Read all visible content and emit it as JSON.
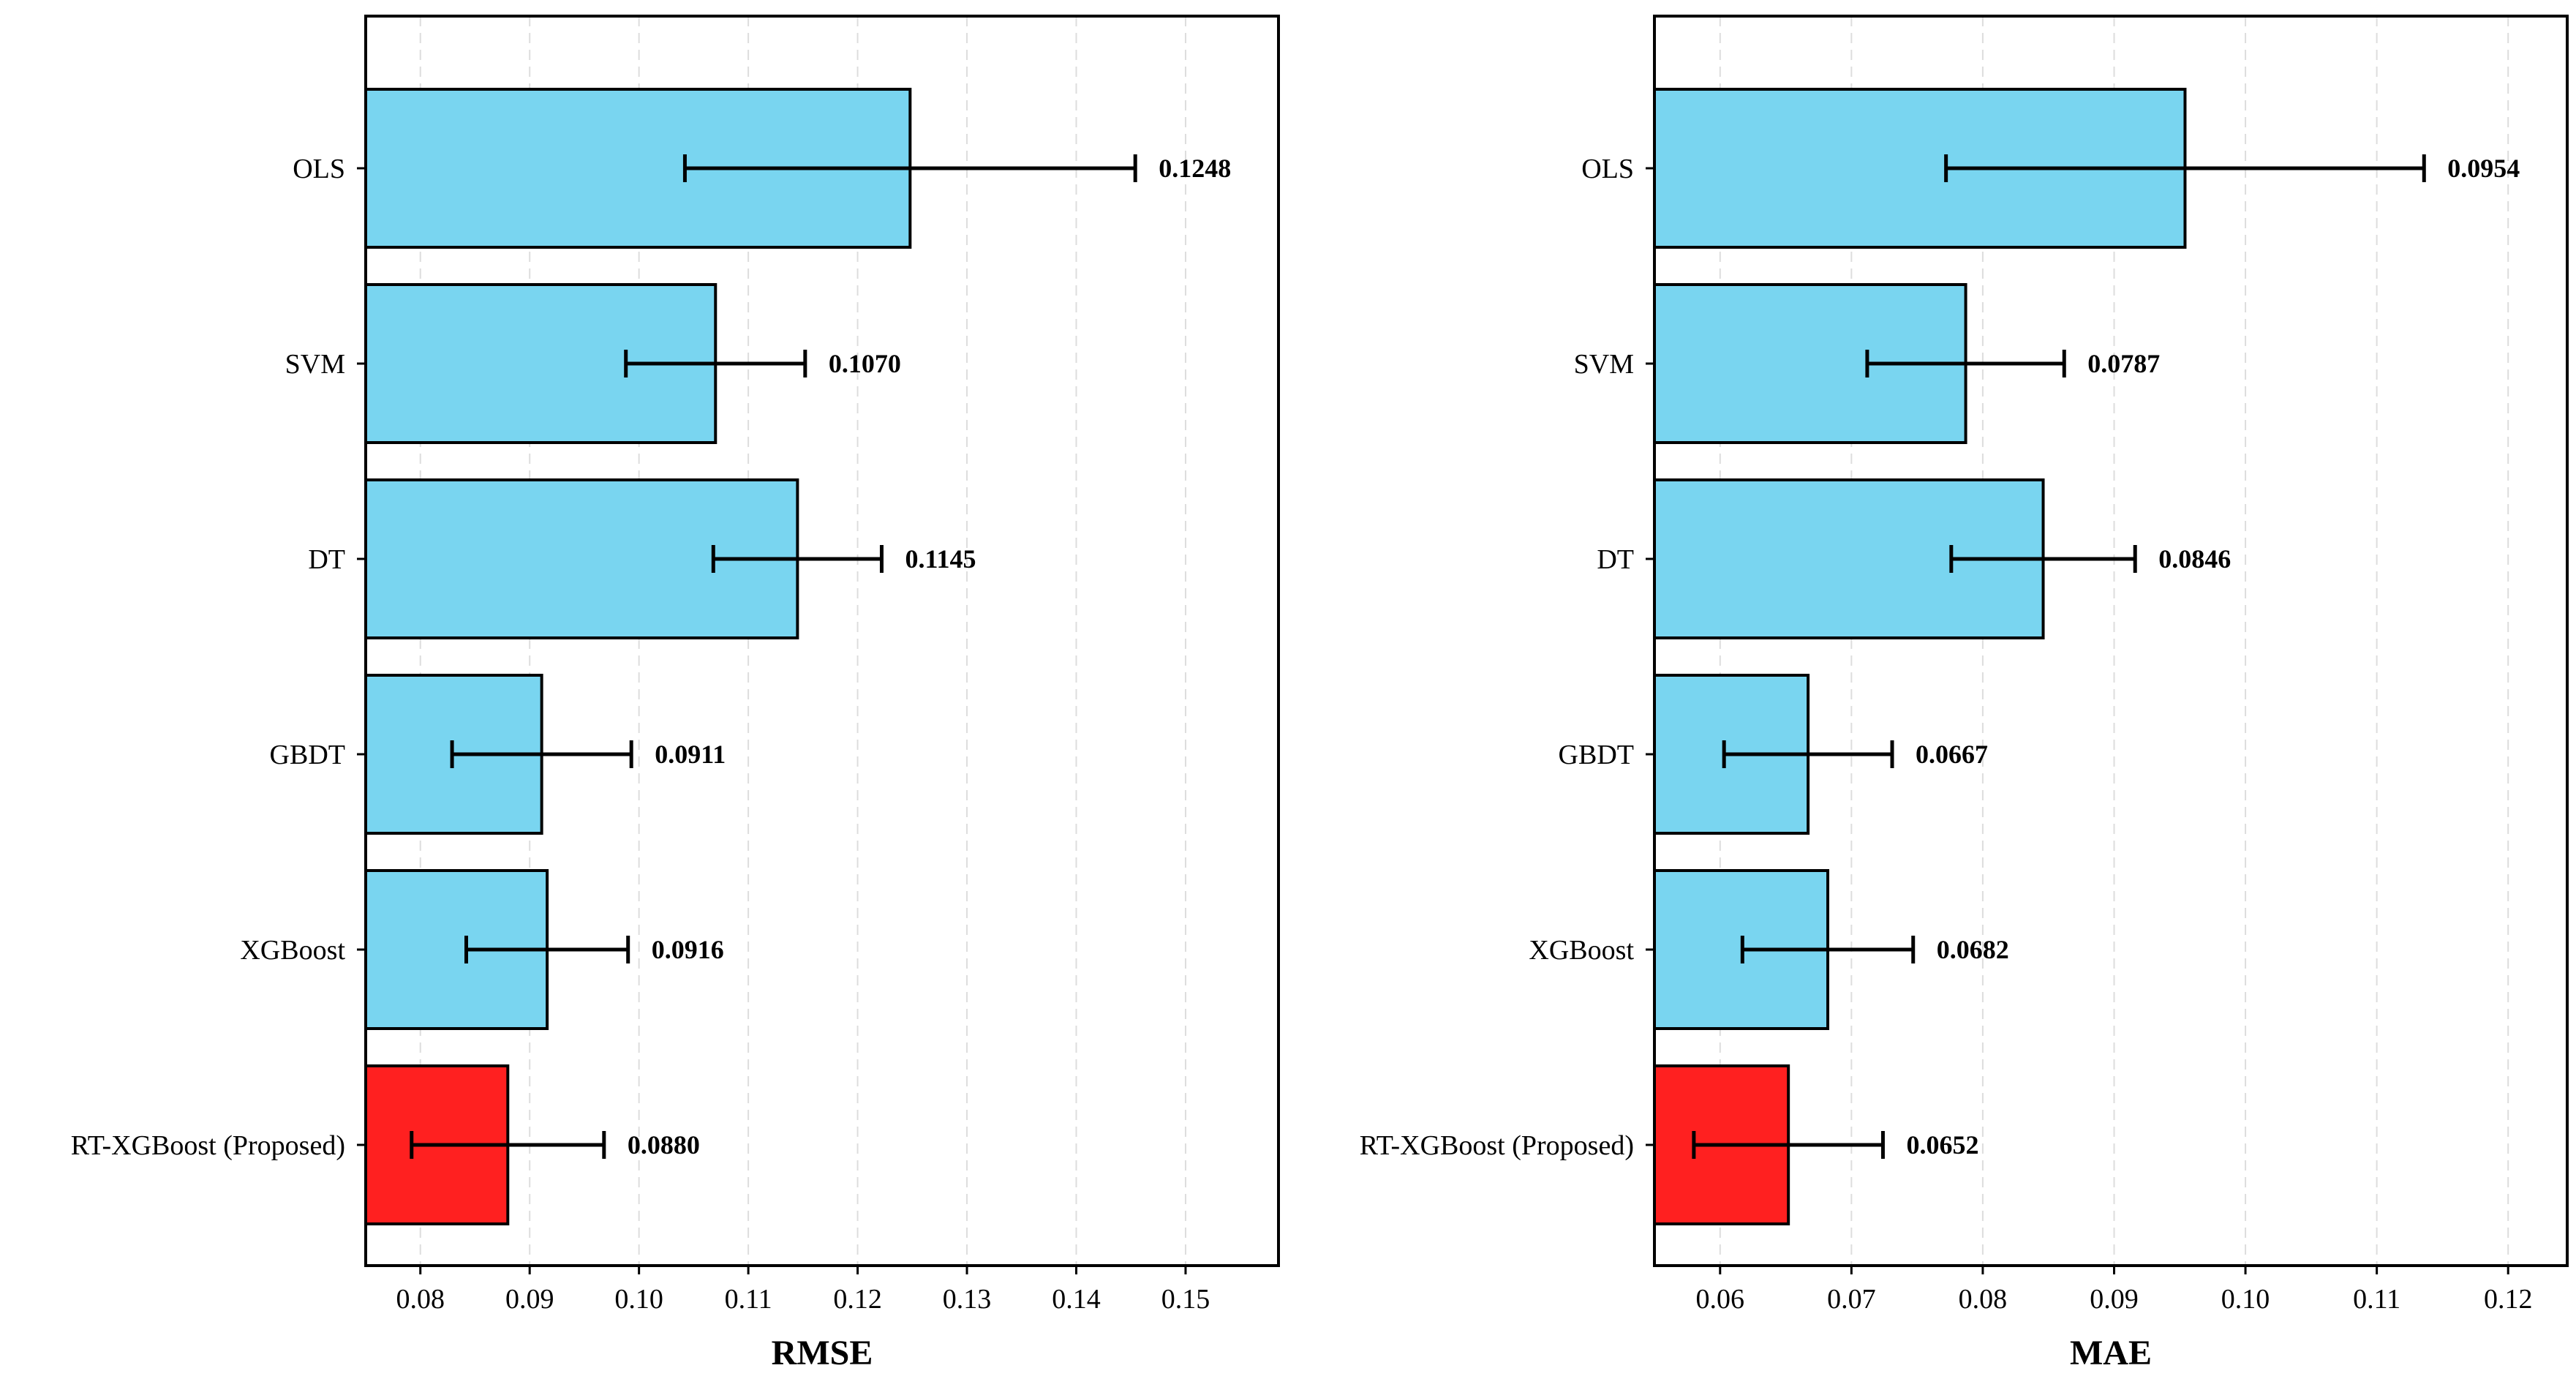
{
  "chart_data": [
    {
      "type": "bar",
      "orientation": "horizontal",
      "categories": [
        "OLS",
        "SVM",
        "DT",
        "GBDT",
        "XGBoost",
        "RT-XGBoost (Proposed)"
      ],
      "values": [
        0.1248,
        0.107,
        0.1145,
        0.0911,
        0.0916,
        0.088
      ],
      "value_labels": [
        "0.1248",
        "0.1070",
        "0.1145",
        "0.0911",
        "0.0916",
        "0.0880"
      ],
      "errors": [
        0.0206,
        0.0082,
        0.0077,
        0.0082,
        0.0074,
        0.0088
      ],
      "xlabel": "RMSE",
      "xlim": [
        0.075,
        0.1585
      ],
      "xticks": [
        0.08,
        0.09,
        0.1,
        0.11,
        0.12,
        0.13,
        0.14,
        0.15
      ],
      "xtick_labels": [
        "0.08",
        "0.09",
        "0.10",
        "0.11",
        "0.12",
        "0.13",
        "0.14",
        "0.15"
      ],
      "bar_colors": [
        "#79d5f0",
        "#79d5f0",
        "#79d5f0",
        "#79d5f0",
        "#79d5f0",
        "#ff2020"
      ],
      "grid": "vertical dashed"
    },
    {
      "type": "bar",
      "orientation": "horizontal",
      "categories": [
        "OLS",
        "SVM",
        "DT",
        "GBDT",
        "XGBoost",
        "RT-XGBoost (Proposed)"
      ],
      "values": [
        0.0954,
        0.0787,
        0.0846,
        0.0667,
        0.0682,
        0.0652
      ],
      "value_labels": [
        "0.0954",
        "0.0787",
        "0.0846",
        "0.0667",
        "0.0682",
        "0.0652"
      ],
      "errors": [
        0.0182,
        0.0075,
        0.007,
        0.0064,
        0.0065,
        0.0072
      ],
      "xlabel": "MAE",
      "xlim": [
        0.055,
        0.1245
      ],
      "xticks": [
        0.06,
        0.07,
        0.08,
        0.09,
        0.1,
        0.11,
        0.12
      ],
      "xtick_labels": [
        "0.06",
        "0.07",
        "0.08",
        "0.09",
        "0.10",
        "0.11",
        "0.12"
      ],
      "bar_colors": [
        "#79d5f0",
        "#79d5f0",
        "#79d5f0",
        "#79d5f0",
        "#79d5f0",
        "#ff2020"
      ],
      "grid": "vertical dashed"
    }
  ]
}
